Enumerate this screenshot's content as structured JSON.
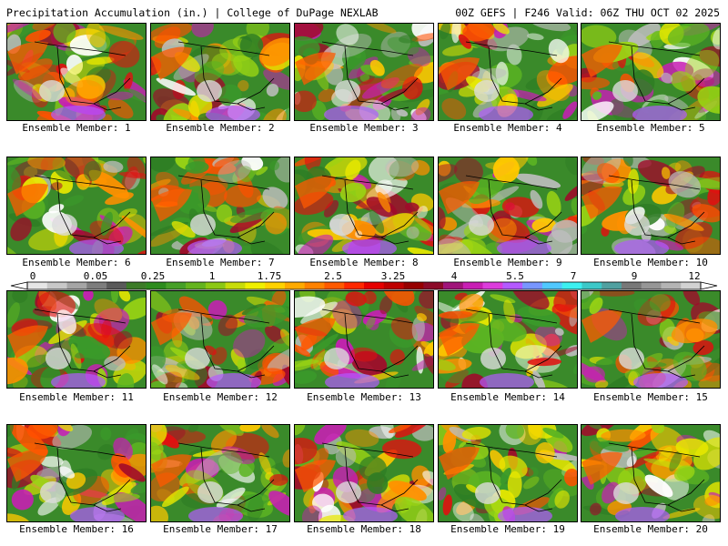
{
  "header": {
    "left": "Precipitation Accumulation (in.) | College of DuPage NEXLAB",
    "right": "00Z GEFS | F246 Valid: 06Z THU OCT 02 2025"
  },
  "members": [
    "Ensemble Member: 1",
    "Ensemble Member: 2",
    "Ensemble Member: 3",
    "Ensemble Member: 4",
    "Ensemble Member: 5",
    "Ensemble Member: 6",
    "Ensemble Member: 7",
    "Ensemble Member: 8",
    "Ensemble Member: 9",
    "Ensemble Member: 10",
    "Ensemble Member: 11",
    "Ensemble Member: 12",
    "Ensemble Member: 13",
    "Ensemble Member: 14",
    "Ensemble Member: 15",
    "Ensemble Member: 16",
    "Ensemble Member: 17",
    "Ensemble Member: 18",
    "Ensemble Member: 19",
    "Ensemble Member: 20"
  ],
  "colorbar": {
    "tick_labels": [
      "0",
      "0.05",
      "0.25",
      "1",
      "1.75",
      "2.5",
      "3.25",
      "4",
      "5.5",
      "7",
      "9",
      "12"
    ],
    "colors": [
      "#e6e6e6",
      "#c8c8c8",
      "#a5a5a5",
      "#7d7d7d",
      "#5a5a5a",
      "#3c7c28",
      "#2d8c1e",
      "#46a028",
      "#64b41e",
      "#8cc814",
      "#c8dc0a",
      "#f0f000",
      "#ffd200",
      "#ffaa00",
      "#ff8200",
      "#ff5a00",
      "#ff2800",
      "#e60000",
      "#be0000",
      "#960000",
      "#8c0a28",
      "#a0147a",
      "#c81eb4",
      "#dc3cdc",
      "#b45aff",
      "#7896ff",
      "#50c8ff",
      "#3cf0f0",
      "#3cc8c8",
      "#50a0a0",
      "#787878",
      "#969696",
      "#b4b4b4",
      "#d2d2d2"
    ]
  }
}
